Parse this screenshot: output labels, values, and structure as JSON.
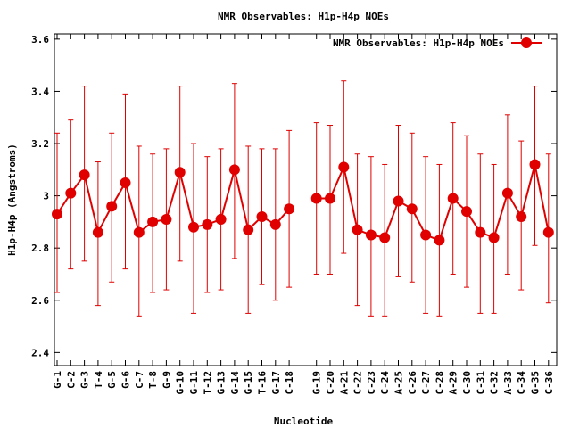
{
  "chart_data": {
    "type": "line",
    "title": "NMR Observables: H1p-H4p NOEs",
    "xlabel": "Nucleotide",
    "ylabel": "H1p-H4p (Angstroms)",
    "ylim": [
      2.35,
      3.62
    ],
    "yticks": [
      "2.4",
      "2.6",
      "2.8",
      "3",
      "3.2",
      "3.4",
      "3.6"
    ],
    "ytick_values": [
      2.4,
      2.6,
      2.8,
      3.0,
      3.2,
      3.4,
      3.6
    ],
    "grid": false,
    "legend_position": "top-right",
    "colors": {
      "series": "#e00000",
      "axis": "#000000",
      "background": "#ffffff"
    },
    "categories": [
      "G-1",
      "C-2",
      "G-3",
      "T-4",
      "G-5",
      "G-6",
      "C-7",
      "T-8",
      "G-9",
      "G-10",
      "G-11",
      "T-12",
      "G-13",
      "G-14",
      "G-15",
      "T-16",
      "G-17",
      "C-18",
      "G-19",
      "C-20",
      "A-21",
      "C-22",
      "C-23",
      "C-24",
      "A-25",
      "C-26",
      "C-27",
      "C-28",
      "A-29",
      "C-30",
      "C-31",
      "C-32",
      "A-33",
      "C-34",
      "G-35",
      "C-36"
    ],
    "series": [
      {
        "name": "NMR Observables: H1p-H4p NOEs",
        "segments": [
          {
            "values": [
              2.93,
              3.01,
              3.08,
              2.86,
              2.96,
              3.05,
              2.86,
              2.9,
              2.91,
              3.09,
              2.88,
              2.89,
              2.91,
              3.1,
              2.87,
              2.92,
              2.89,
              2.95
            ],
            "err_low": [
              2.63,
              2.72,
              2.75,
              2.58,
              2.67,
              2.72,
              2.54,
              2.63,
              2.64,
              2.75,
              2.55,
              2.63,
              2.64,
              2.76,
              2.55,
              2.66,
              2.6,
              2.65
            ],
            "err_high": [
              3.24,
              3.29,
              3.42,
              3.13,
              3.24,
              3.39,
              3.19,
              3.16,
              3.18,
              3.42,
              3.2,
              3.15,
              3.18,
              3.43,
              3.19,
              3.18,
              3.18,
              3.25
            ]
          },
          {
            "values": [
              2.99,
              2.99,
              3.11,
              2.87,
              2.85,
              2.84,
              2.98,
              2.95,
              2.85,
              2.83,
              2.99,
              2.94,
              2.86,
              2.84,
              3.01,
              2.92,
              3.12,
              2.86
            ],
            "err_low": [
              2.7,
              2.7,
              2.78,
              2.58,
              2.54,
              2.54,
              2.69,
              2.67,
              2.55,
              2.54,
              2.7,
              2.65,
              2.55,
              2.55,
              2.7,
              2.64,
              2.81,
              2.59
            ],
            "err_high": [
              3.28,
              3.27,
              3.44,
              3.16,
              3.15,
              3.12,
              3.27,
              3.24,
              3.15,
              3.12,
              3.28,
              3.23,
              3.16,
              3.12,
              3.31,
              3.21,
              3.42,
              3.16
            ]
          }
        ]
      }
    ]
  }
}
